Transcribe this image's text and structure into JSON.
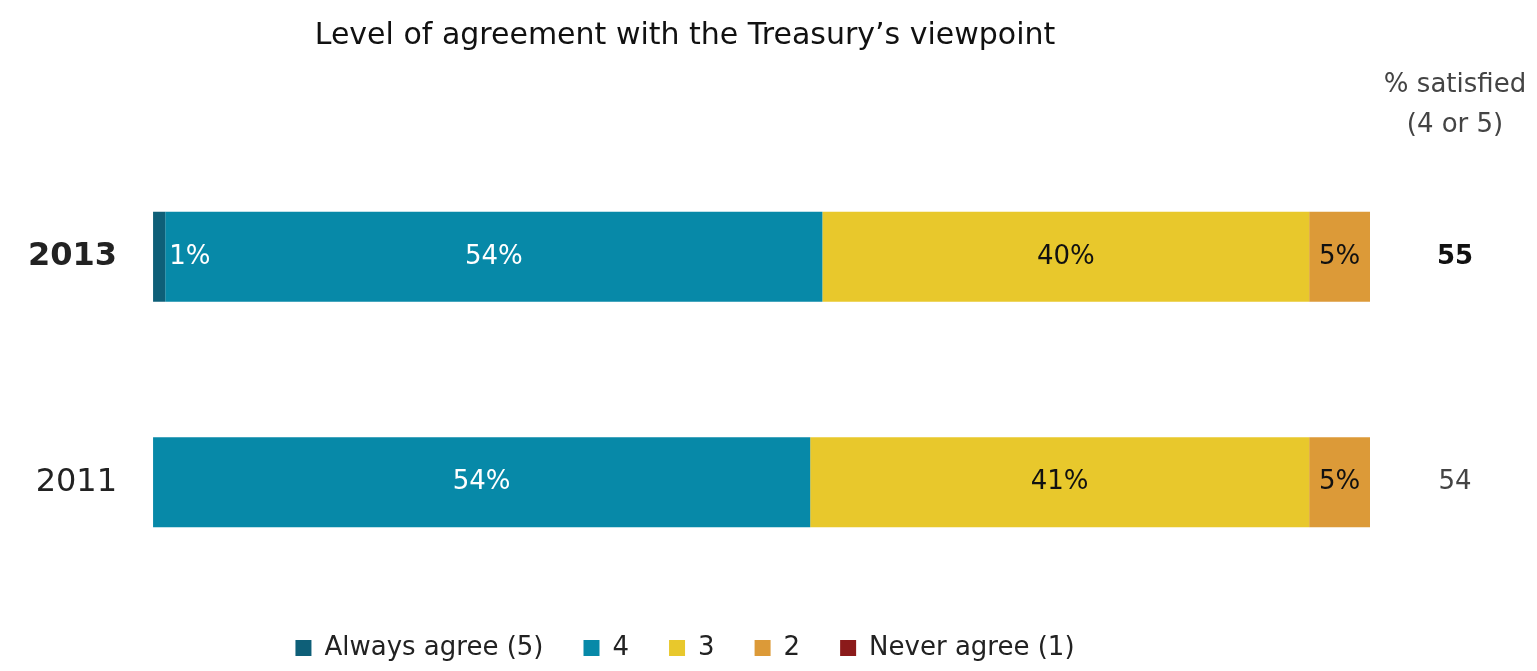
{
  "chart_data": {
    "type": "bar",
    "orientation": "horizontal",
    "stacked": true,
    "title": "Level of agreement with the Treasury’s viewpoint",
    "categories": [
      "2013",
      "2011"
    ],
    "series": [
      {
        "name": "Always agree (5)",
        "color": "#0e5f78",
        "values": [
          1,
          null
        ],
        "value_labels": [
          "1%",
          null
        ]
      },
      {
        "name": "4",
        "color": "#0789a8",
        "values": [
          54,
          54
        ],
        "value_labels": [
          "54%",
          "54%"
        ]
      },
      {
        "name": "3",
        "color": "#e8c82c",
        "values": [
          40,
          41
        ],
        "value_labels": [
          "40%",
          "41%"
        ]
      },
      {
        "name": "2",
        "color": "#dc9a38",
        "values": [
          5,
          5
        ],
        "value_labels": [
          "5%",
          "5%"
        ]
      },
      {
        "name": "Never agree (1)",
        "color": "#8b1a1a",
        "values": [
          null,
          null
        ]
      }
    ],
    "xlim": [
      0,
      100
    ],
    "tick_labels": "y",
    "legend": "bottom",
    "annotations": [
      "% satisfied\n(4 or 5)",
      "55",
      "54"
    ]
  }
}
